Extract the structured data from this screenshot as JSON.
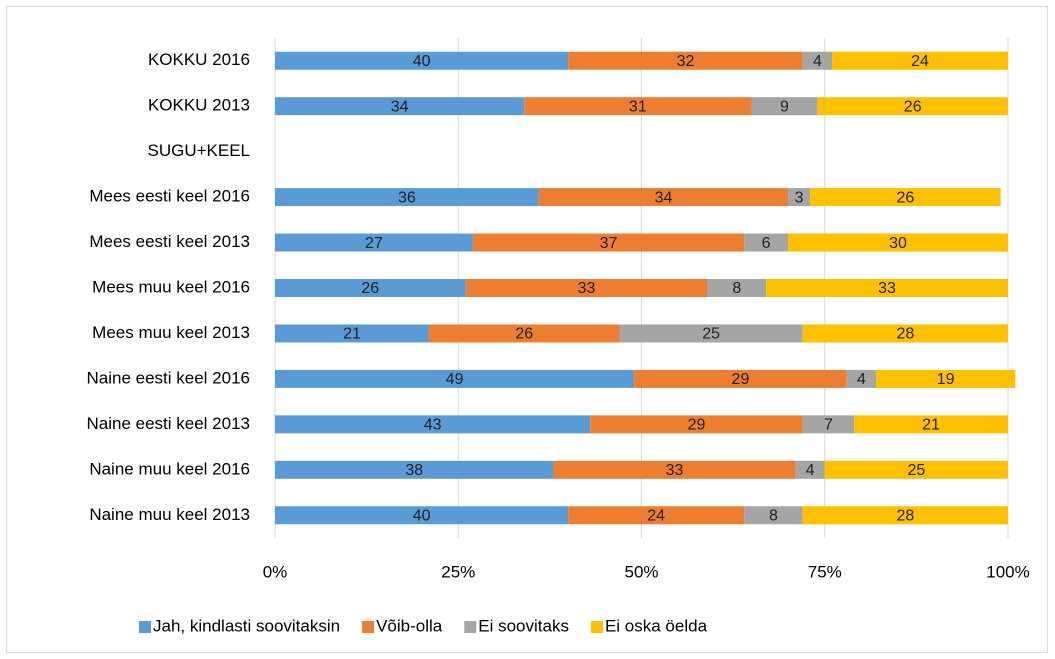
{
  "chart_data": {
    "type": "stacked-bar-horizontal",
    "categories": [
      "KOKKU 2016",
      "KOKKU 2013",
      "SUGU+KEEL",
      "Mees eesti keel 2016",
      "Mees eesti keel 2013",
      "Mees muu keel 2016",
      "Mees muu keel 2013",
      "Naine eesti keel 2016",
      "Naine eesti keel 2013",
      "Naine muu keel 2016",
      "Naine muu keel 2013"
    ],
    "series": [
      {
        "name": "Jah, kindlasti soovitaksin",
        "color": "#5B9BD5",
        "values": [
          40,
          34,
          null,
          36,
          27,
          26,
          21,
          49,
          43,
          38,
          40
        ]
      },
      {
        "name": "Võib-olla",
        "color": "#ED7D31",
        "values": [
          32,
          31,
          null,
          34,
          37,
          33,
          26,
          29,
          29,
          33,
          24
        ]
      },
      {
        "name": "Ei soovitaks",
        "color": "#A5A5A5",
        "values": [
          4,
          9,
          null,
          3,
          6,
          8,
          25,
          4,
          7,
          4,
          8
        ]
      },
      {
        "name": "Ei oska öelda",
        "color": "#FFC000",
        "values": [
          24,
          26,
          null,
          26,
          30,
          33,
          28,
          19,
          21,
          25,
          28
        ]
      }
    ],
    "xlim": [
      0,
      100
    ],
    "xticks": [
      {
        "value": 0,
        "label": "0%"
      },
      {
        "value": 25,
        "label": "25%"
      },
      {
        "value": 50,
        "label": "50%"
      },
      {
        "value": 75,
        "label": "75%"
      },
      {
        "value": 100,
        "label": "100%"
      }
    ],
    "grid": true,
    "legend": "bottom"
  }
}
